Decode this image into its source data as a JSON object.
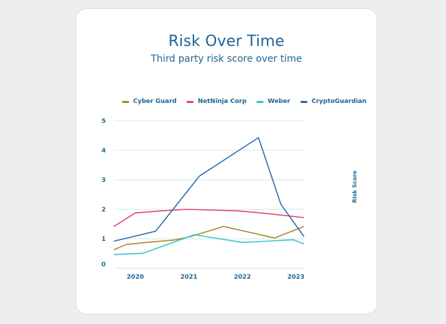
{
  "chart_data": {
    "type": "line",
    "title": "Risk Over Time",
    "subtitle": "Third party risk score over time",
    "ylabel": "Risk Score",
    "xlabel": "",
    "xlim": [
      2019.6,
      2023.15
    ],
    "ylim": [
      0,
      5
    ],
    "y_ticks": [
      "0",
      "1",
      "2",
      "3",
      "4",
      "5"
    ],
    "x_ticks": [
      "2020",
      "2021",
      "2022",
      "2023"
    ],
    "x_tick_values": [
      2020,
      2021,
      2022,
      2023
    ],
    "grid": "horizontal",
    "legend_placement": "top",
    "series": [
      {
        "name": "Cyber Guard",
        "color": "#a88a25",
        "points": [
          [
            2019.6,
            0.63
          ],
          [
            2019.83,
            0.81
          ],
          [
            2020.2,
            0.88
          ],
          [
            2020.72,
            0.96
          ],
          [
            2021.0,
            1.06
          ],
          [
            2021.65,
            1.42
          ],
          [
            2022.6,
            1.03
          ],
          [
            2023.15,
            1.42
          ]
        ]
      },
      {
        "name": "NetNinja Corp",
        "color": "#e6436b",
        "points": [
          [
            2019.6,
            1.42
          ],
          [
            2020.0,
            1.88
          ],
          [
            2020.5,
            1.95
          ],
          [
            2020.95,
            2.0
          ],
          [
            2021.9,
            1.95
          ],
          [
            2022.5,
            1.85
          ],
          [
            2023.15,
            1.72
          ]
        ]
      },
      {
        "name": "Weber",
        "color": "#3bc4c6",
        "points": [
          [
            2019.6,
            0.47
          ],
          [
            2020.14,
            0.51
          ],
          [
            2021.1,
            1.14
          ],
          [
            2022.0,
            0.88
          ],
          [
            2022.95,
            0.97
          ],
          [
            2023.15,
            0.83
          ]
        ]
      },
      {
        "name": "CryptoGuardian",
        "color": "#2e6bb0",
        "points": [
          [
            2019.6,
            0.92
          ],
          [
            2020.38,
            1.26
          ],
          [
            2021.2,
            3.13
          ],
          [
            2022.3,
            4.43
          ],
          [
            2022.72,
            2.17
          ],
          [
            2023.15,
            1.08
          ]
        ]
      }
    ]
  }
}
